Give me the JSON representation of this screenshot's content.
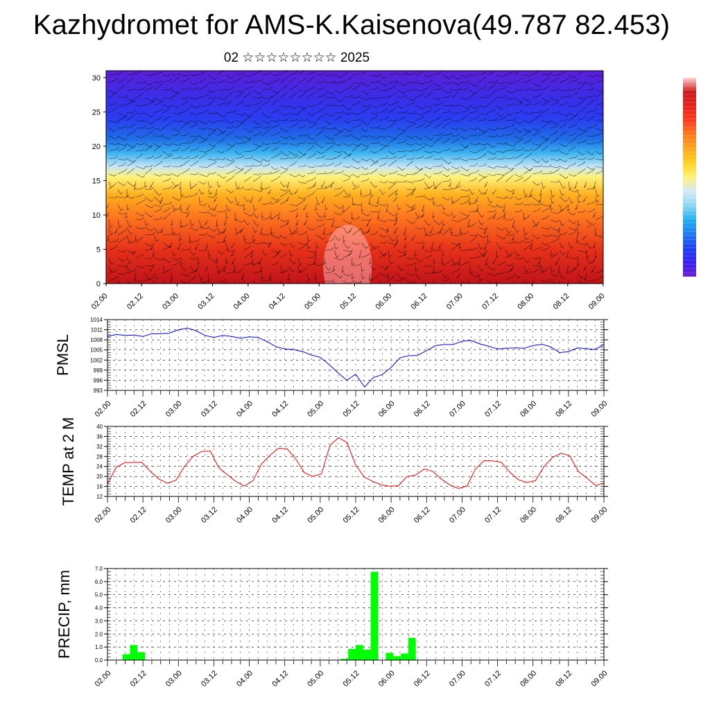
{
  "header": {
    "title": "Kazhydromet for AMS-K.Kaisenova(49.787 82.453)",
    "subtitle": "02 ☆☆☆☆☆☆☆☆ 2025"
  },
  "colors": {
    "pmsl_line": "#0000ff",
    "temp_line": "#ff0000",
    "precip_bar": "#00ff00",
    "colorbar": [
      "#6a1dd6",
      "#3a1ff0",
      "#1f3ff5",
      "#1f7af0",
      "#22b0f0",
      "#8ed6f5",
      "#d6e9f5",
      "#fff27a",
      "#ffd21f",
      "#ffa61f",
      "#ff7a1f",
      "#ff3b1f",
      "#e8231f",
      "#cc1a1a",
      "#ffd6d6"
    ]
  },
  "chart_data": [
    {
      "type": "heatmap",
      "title": "",
      "xlabel": "",
      "ylabel": "",
      "x_ticks": [
        "02.00",
        "02.12",
        "03.00",
        "03.12",
        "04.00",
        "04.12",
        "05.00",
        "05.12",
        "06.00",
        "06.12",
        "07.00",
        "07.12",
        "08.00",
        "08.12",
        "09.00"
      ],
      "y_ticks": [
        "0",
        "5",
        "10",
        "15",
        "20",
        "25",
        "30"
      ],
      "xlim": [
        0,
        14
      ],
      "ylim": [
        0,
        31
      ],
      "bands_description_levels": [
        {
          "y": 0,
          "color": "#c0121a"
        },
        {
          "y": 5,
          "color": "#e63219"
        },
        {
          "y": 10,
          "color": "#ff7a1f"
        },
        {
          "y": 13,
          "color": "#ffb21f"
        },
        {
          "y": 15.5,
          "color": "#fff27a"
        },
        {
          "y": 17,
          "color": "#c8e6f5"
        },
        {
          "y": 19,
          "color": "#3cb4f0"
        },
        {
          "y": 21,
          "color": "#1f6fe6"
        },
        {
          "y": 24,
          "color": "#2a3df0"
        },
        {
          "y": 27,
          "color": "#3a2ee8"
        },
        {
          "y": 31,
          "color": "#5a1fd6"
        }
      ],
      "overlay": "wind barbs"
    },
    {
      "type": "line",
      "ylabel": "PMSL",
      "x_ticks": [
        "02.00",
        "02.12",
        "03.00",
        "03.12",
        "04.00",
        "04.12",
        "05.00",
        "05.12",
        "06.00",
        "06.12",
        "07.00",
        "07.12",
        "08.00",
        "08.12",
        "09.00"
      ],
      "y_ticks": [
        "993",
        "996",
        "999",
        "1002",
        "1005",
        "1008",
        "1011",
        "1014"
      ],
      "ylim": [
        993,
        1014
      ],
      "xlim": [
        0,
        56
      ],
      "series": [
        {
          "values": [
            1009,
            1009.6,
            1009.3,
            1009.4,
            1009,
            1009.8,
            1009.8,
            1010,
            1011,
            1011.5,
            1010.7,
            1009.3,
            1008.7,
            1009.3,
            1009,
            1008.5,
            1008.9,
            1008.7,
            1007.5,
            1006,
            1005.3,
            1005.1,
            1004.5,
            1003.5,
            1002.8,
            1000.7,
            998.2,
            996,
            997.8,
            994,
            996.8,
            997.7,
            999.8,
            1002.7,
            1003.3,
            1003.4,
            1004.8,
            1006.3,
            1006.6,
            1006.6,
            1007.6,
            1007.8,
            1006.8,
            1006.1,
            1005.3,
            1005.5,
            1005.6,
            1005.5,
            1006.3,
            1006.7,
            1005.9,
            1004.2,
            1004.5,
            1005.6,
            1005.4,
            1005.1,
            1006.6
          ]
        }
      ]
    },
    {
      "type": "line",
      "ylabel": "TEMP at 2 M",
      "x_ticks": [
        "02.00",
        "02.12",
        "03.00",
        "03.12",
        "04.00",
        "04.12",
        "05.00",
        "05.12",
        "06.00",
        "06.12",
        "07.00",
        "07.12",
        "08.00",
        "08.12",
        "09.00"
      ],
      "y_ticks": [
        "12",
        "16",
        "20",
        "24",
        "28",
        "32",
        "36",
        "40"
      ],
      "ylim": [
        12,
        40
      ],
      "xlim": [
        0,
        56
      ],
      "series": [
        {
          "values": [
            17,
            23.5,
            25.5,
            25.6,
            25.7,
            22,
            19,
            17.3,
            18.5,
            24,
            28,
            30,
            30.2,
            23.5,
            20.7,
            18,
            16.2,
            18.3,
            25,
            28.5,
            31.3,
            31,
            27,
            21.5,
            20,
            21,
            32.5,
            35.5,
            33.5,
            24.5,
            19.8,
            18,
            16.6,
            16.1,
            16.3,
            20,
            20.5,
            23,
            22,
            19,
            16.6,
            15.2,
            16.2,
            23,
            26.3,
            26.2,
            25.7,
            21.7,
            18.7,
            17.6,
            18.3,
            24,
            27.6,
            29.3,
            28.3,
            22,
            19.4,
            16.4,
            17.3
          ]
        }
      ]
    },
    {
      "type": "bar",
      "ylabel": "PRECIP, mm",
      "x_ticks": [
        "02.00",
        "02.12",
        "03.00",
        "03.12",
        "04.00",
        "04.12",
        "05.00",
        "05.12",
        "06.00",
        "06.12",
        "07.00",
        "07.12",
        "08.00",
        "08.12",
        "09.00"
      ],
      "y_ticks": [
        "0.0",
        "1.0",
        "2.0",
        "3.0",
        "4.0",
        "5.0",
        "6.0",
        "7.0"
      ],
      "ylim": [
        0,
        7
      ],
      "xlim": [
        0,
        56
      ],
      "values": [
        0,
        0,
        0.45,
        1.15,
        0.6,
        0,
        0,
        0,
        0,
        0,
        0,
        0,
        0,
        0,
        0,
        0,
        0,
        0,
        0,
        0,
        0,
        0,
        0,
        0,
        0,
        0,
        0,
        0,
        0,
        0,
        0,
        0.1,
        0.85,
        1.15,
        0.8,
        6.75,
        0,
        0.55,
        0.3,
        0.5,
        1.7,
        0,
        0,
        0,
        0,
        0,
        0,
        0,
        0,
        0.02,
        0,
        0,
        0,
        0,
        0,
        0,
        0,
        0,
        0,
        0,
        0,
        0,
        0,
        0,
        0,
        0
      ]
    }
  ]
}
